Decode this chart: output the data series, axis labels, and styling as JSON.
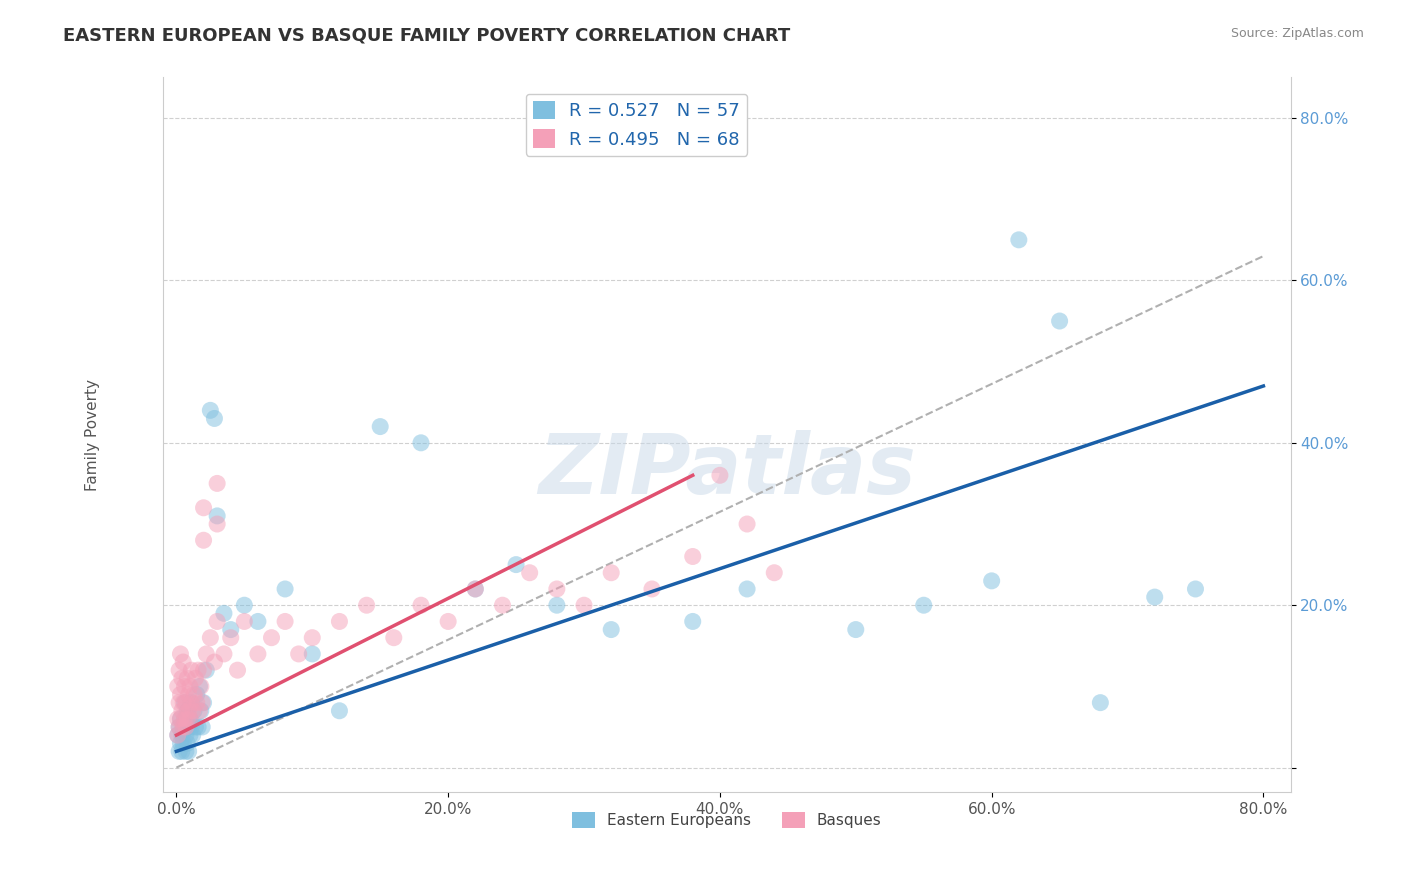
{
  "title": "EASTERN EUROPEAN VS BASQUE FAMILY POVERTY CORRELATION CHART",
  "source": "Source: ZipAtlas.com",
  "xlabel": "",
  "ylabel": "Family Poverty",
  "xlim": [
    -0.01,
    0.82
  ],
  "ylim": [
    -0.03,
    0.85
  ],
  "xticks": [
    0.0,
    0.2,
    0.4,
    0.6,
    0.8
  ],
  "yticks": [
    0.0,
    0.2,
    0.4,
    0.6,
    0.8
  ],
  "xticklabels": [
    "0.0%",
    "20.0%",
    "40.0%",
    "60.0%",
    "80.0%"
  ],
  "yticklabels": [
    "",
    "20.0%",
    "40.0%",
    "60.0%",
    "80.0%"
  ],
  "blue_color": "#7fbfdf",
  "pink_color": "#f4a0b8",
  "blue_line_color": "#1a5fa8",
  "pink_line_color": "#e05070",
  "gray_line_color": "#b0b0b0",
  "background_color": "#ffffff",
  "grid_color": "#d0d0d0",
  "blue_line_x0": 0.0,
  "blue_line_y0": 0.02,
  "blue_line_x1": 0.8,
  "blue_line_y1": 0.47,
  "pink_line_x0": 0.0,
  "pink_line_y0": 0.04,
  "pink_line_x1": 0.38,
  "pink_line_y1": 0.36,
  "gray_line_x0": 0.0,
  "gray_line_y0": 0.0,
  "gray_line_x1": 0.8,
  "gray_line_y1": 0.63,
  "legend_blue_label": "R = 0.527   N = 57",
  "legend_pink_label": "R = 0.495   N = 68",
  "legend_label_eastern": "Eastern Europeans",
  "legend_label_basque": "Basques",
  "watermark": "ZIPatlas",
  "title_fontsize": 13,
  "axis_label_fontsize": 11,
  "tick_fontsize": 11,
  "blue_x": [
    0.001,
    0.002,
    0.002,
    0.003,
    0.003,
    0.004,
    0.004,
    0.005,
    0.005,
    0.006,
    0.006,
    0.007,
    0.007,
    0.008,
    0.008,
    0.009,
    0.009,
    0.01,
    0.01,
    0.011,
    0.011,
    0.012,
    0.013,
    0.014,
    0.015,
    0.016,
    0.017,
    0.018,
    0.019,
    0.02,
    0.022,
    0.025,
    0.028,
    0.03,
    0.035,
    0.04,
    0.05,
    0.06,
    0.08,
    0.1,
    0.12,
    0.15,
    0.18,
    0.22,
    0.25,
    0.28,
    0.32,
    0.38,
    0.42,
    0.5,
    0.55,
    0.6,
    0.62,
    0.65,
    0.68,
    0.72,
    0.75
  ],
  "blue_y": [
    0.04,
    0.02,
    0.05,
    0.03,
    0.06,
    0.04,
    0.02,
    0.05,
    0.03,
    0.06,
    0.08,
    0.04,
    0.02,
    0.07,
    0.03,
    0.05,
    0.02,
    0.06,
    0.04,
    0.08,
    0.05,
    0.04,
    0.07,
    0.05,
    0.09,
    0.05,
    0.1,
    0.07,
    0.05,
    0.08,
    0.12,
    0.44,
    0.43,
    0.31,
    0.19,
    0.17,
    0.2,
    0.18,
    0.22,
    0.14,
    0.07,
    0.42,
    0.4,
    0.22,
    0.25,
    0.2,
    0.17,
    0.18,
    0.22,
    0.17,
    0.2,
    0.23,
    0.65,
    0.55,
    0.08,
    0.21,
    0.22
  ],
  "pink_x": [
    0.001,
    0.001,
    0.001,
    0.002,
    0.002,
    0.002,
    0.003,
    0.003,
    0.003,
    0.004,
    0.004,
    0.005,
    0.005,
    0.005,
    0.006,
    0.006,
    0.007,
    0.007,
    0.008,
    0.008,
    0.009,
    0.009,
    0.01,
    0.01,
    0.011,
    0.011,
    0.012,
    0.013,
    0.014,
    0.015,
    0.016,
    0.017,
    0.018,
    0.019,
    0.02,
    0.022,
    0.025,
    0.028,
    0.03,
    0.035,
    0.04,
    0.045,
    0.05,
    0.06,
    0.07,
    0.08,
    0.09,
    0.1,
    0.12,
    0.14,
    0.16,
    0.18,
    0.2,
    0.22,
    0.24,
    0.26,
    0.28,
    0.3,
    0.32,
    0.35,
    0.38,
    0.4,
    0.42,
    0.44,
    0.02,
    0.02,
    0.03,
    0.03
  ],
  "pink_y": [
    0.04,
    0.06,
    0.1,
    0.05,
    0.08,
    0.12,
    0.06,
    0.09,
    0.14,
    0.07,
    0.11,
    0.05,
    0.08,
    0.13,
    0.06,
    0.1,
    0.05,
    0.08,
    0.06,
    0.11,
    0.07,
    0.09,
    0.06,
    0.1,
    0.08,
    0.12,
    0.07,
    0.09,
    0.11,
    0.08,
    0.12,
    0.07,
    0.1,
    0.08,
    0.12,
    0.14,
    0.16,
    0.13,
    0.18,
    0.14,
    0.16,
    0.12,
    0.18,
    0.14,
    0.16,
    0.18,
    0.14,
    0.16,
    0.18,
    0.2,
    0.16,
    0.2,
    0.18,
    0.22,
    0.2,
    0.24,
    0.22,
    0.2,
    0.24,
    0.22,
    0.26,
    0.36,
    0.3,
    0.24,
    0.28,
    0.32,
    0.3,
    0.35
  ]
}
